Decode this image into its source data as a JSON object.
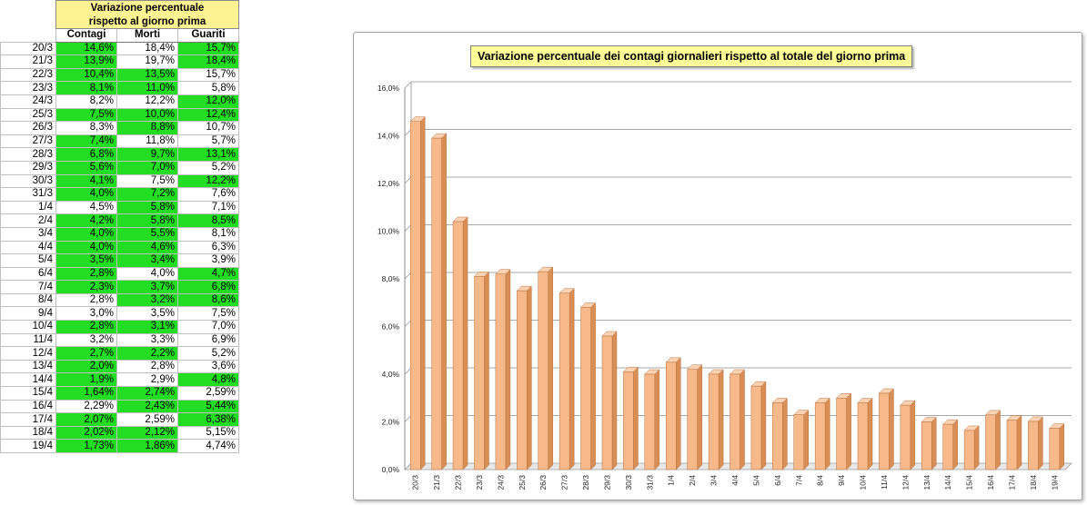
{
  "table": {
    "title_line1": "Variazione percentuale",
    "title_line2": "rispetto al giorno prima",
    "headers": [
      "Contagi",
      "Morti",
      "Guariti"
    ],
    "rows": [
      {
        "date": "20/3",
        "contagi": "14,6%",
        "morti": "18,4%",
        "guariti": "15,7%",
        "g": [
          1,
          0,
          1
        ]
      },
      {
        "date": "21/3",
        "contagi": "13,9%",
        "morti": "19,7%",
        "guariti": "18,4%",
        "g": [
          1,
          0,
          1
        ]
      },
      {
        "date": "22/3",
        "contagi": "10,4%",
        "morti": "13,5%",
        "guariti": "15,7%",
        "g": [
          1,
          1,
          0
        ]
      },
      {
        "date": "23/3",
        "contagi": "8,1%",
        "morti": "11,0%",
        "guariti": "5,8%",
        "g": [
          1,
          1,
          0
        ]
      },
      {
        "date": "24/3",
        "contagi": "8,2%",
        "morti": "12,2%",
        "guariti": "12,0%",
        "g": [
          0,
          0,
          1
        ]
      },
      {
        "date": "25/3",
        "contagi": "7,5%",
        "morti": "10,0%",
        "guariti": "12,4%",
        "g": [
          1,
          1,
          1
        ]
      },
      {
        "date": "26/3",
        "contagi": "8,3%",
        "morti": "8,8%",
        "guariti": "10,7%",
        "g": [
          0,
          1,
          0
        ]
      },
      {
        "date": "27/3",
        "contagi": "7,4%",
        "morti": "11,8%",
        "guariti": "5,7%",
        "g": [
          1,
          0,
          0
        ]
      },
      {
        "date": "28/3",
        "contagi": "6,8%",
        "morti": "9,7%",
        "guariti": "13,1%",
        "g": [
          1,
          1,
          1
        ]
      },
      {
        "date": "29/3",
        "contagi": "5,6%",
        "morti": "7,0%",
        "guariti": "5,2%",
        "g": [
          1,
          1,
          0
        ]
      },
      {
        "date": "30/3",
        "contagi": "4,1%",
        "morti": "7,5%",
        "guariti": "12,2%",
        "g": [
          1,
          0,
          1
        ]
      },
      {
        "date": "31/3",
        "contagi": "4,0%",
        "morti": "7,2%",
        "guariti": "7,6%",
        "g": [
          1,
          1,
          0
        ]
      },
      {
        "date": "1/4",
        "contagi": "4,5%",
        "morti": "5,8%",
        "guariti": "7,1%",
        "g": [
          0,
          1,
          0
        ]
      },
      {
        "date": "2/4",
        "contagi": "4,2%",
        "morti": "5,8%",
        "guariti": "8,5%",
        "g": [
          1,
          1,
          1
        ]
      },
      {
        "date": "3/4",
        "contagi": "4,0%",
        "morti": "5,5%",
        "guariti": "8,1%",
        "g": [
          1,
          1,
          0
        ]
      },
      {
        "date": "4/4",
        "contagi": "4,0%",
        "morti": "4,6%",
        "guariti": "6,3%",
        "g": [
          1,
          1,
          0
        ]
      },
      {
        "date": "5/4",
        "contagi": "3,5%",
        "morti": "3,4%",
        "guariti": "3,9%",
        "g": [
          1,
          1,
          0
        ]
      },
      {
        "date": "6/4",
        "contagi": "2,8%",
        "morti": "4,0%",
        "guariti": "4,7%",
        "g": [
          1,
          0,
          1
        ]
      },
      {
        "date": "7/4",
        "contagi": "2,3%",
        "morti": "3,7%",
        "guariti": "6,8%",
        "g": [
          1,
          1,
          1
        ]
      },
      {
        "date": "8/4",
        "contagi": "2,8%",
        "morti": "3,2%",
        "guariti": "8,6%",
        "g": [
          0,
          1,
          1
        ]
      },
      {
        "date": "9/4",
        "contagi": "3,0%",
        "morti": "3,5%",
        "guariti": "7,5%",
        "g": [
          0,
          0,
          0
        ]
      },
      {
        "date": "10/4",
        "contagi": "2,8%",
        "morti": "3,1%",
        "guariti": "7,0%",
        "g": [
          1,
          1,
          0
        ]
      },
      {
        "date": "11/4",
        "contagi": "3,2%",
        "morti": "3,3%",
        "guariti": "6,9%",
        "g": [
          0,
          0,
          0
        ]
      },
      {
        "date": "12/4",
        "contagi": "2,7%",
        "morti": "2,2%",
        "guariti": "5,2%",
        "g": [
          1,
          1,
          0
        ]
      },
      {
        "date": "13/4",
        "contagi": "2,0%",
        "morti": "2,8%",
        "guariti": "3,6%",
        "g": [
          1,
          0,
          0
        ]
      },
      {
        "date": "14/4",
        "contagi": "1,9%",
        "morti": "2,9%",
        "guariti": "4,8%",
        "g": [
          1,
          0,
          1
        ]
      },
      {
        "date": "15/4",
        "contagi": "1,64%",
        "morti": "2,74%",
        "guariti": "2,59%",
        "g": [
          1,
          1,
          0
        ]
      },
      {
        "date": "16/4",
        "contagi": "2,29%",
        "morti": "2,43%",
        "guariti": "5,44%",
        "g": [
          0,
          1,
          1
        ]
      },
      {
        "date": "17/4",
        "contagi": "2,07%",
        "morti": "2,59%",
        "guariti": "6,38%",
        "g": [
          1,
          0,
          1
        ]
      },
      {
        "date": "18/4",
        "contagi": "2,02%",
        "morti": "2,12%",
        "guariti": "5,15%",
        "g": [
          1,
          1,
          0
        ]
      },
      {
        "date": "19/4",
        "contagi": "1,73%",
        "morti": "1,86%",
        "guariti": "4,74%",
        "g": [
          1,
          1,
          0
        ]
      }
    ]
  },
  "colors": {
    "green_cell": "#22dd22",
    "title_fill": "#fef392",
    "bar_fill": "#f8b98a",
    "bar_side": "#d98e55",
    "bar_top": "#fcd3b2",
    "chart_title_fill": "#ffff99",
    "gridline": "#8c8c8c"
  },
  "chart_data": {
    "type": "bar",
    "title": "Variazione percentuale dei contagi giornalieri rispetto al totale del giorno prima",
    "categories": [
      "20/3",
      "21/3",
      "22/3",
      "23/3",
      "24/3",
      "25/3",
      "26/3",
      "27/3",
      "28/3",
      "29/3",
      "30/3",
      "31/3",
      "1/4",
      "2/4",
      "3/4",
      "4/4",
      "5/4",
      "6/4",
      "7/4",
      "8/4",
      "9/4",
      "10/4",
      "11/4",
      "12/4",
      "13/4",
      "14/4",
      "15/4",
      "16/4",
      "17/4",
      "18/4",
      "19/4"
    ],
    "values": [
      14.6,
      13.9,
      10.4,
      8.1,
      8.2,
      7.5,
      8.3,
      7.4,
      6.8,
      5.6,
      4.1,
      4.0,
      4.5,
      4.2,
      4.0,
      4.0,
      3.5,
      2.8,
      2.3,
      2.8,
      3.0,
      2.8,
      3.2,
      2.7,
      2.0,
      1.9,
      1.64,
      2.29,
      2.07,
      2.02,
      1.73
    ],
    "yticks": [
      "0,0%",
      "2,0%",
      "4,0%",
      "6,0%",
      "8,0%",
      "10,0%",
      "12,0%",
      "14,0%",
      "16,0%"
    ],
    "ylim": [
      0,
      16
    ],
    "grid": true,
    "bar_style": "3d"
  }
}
